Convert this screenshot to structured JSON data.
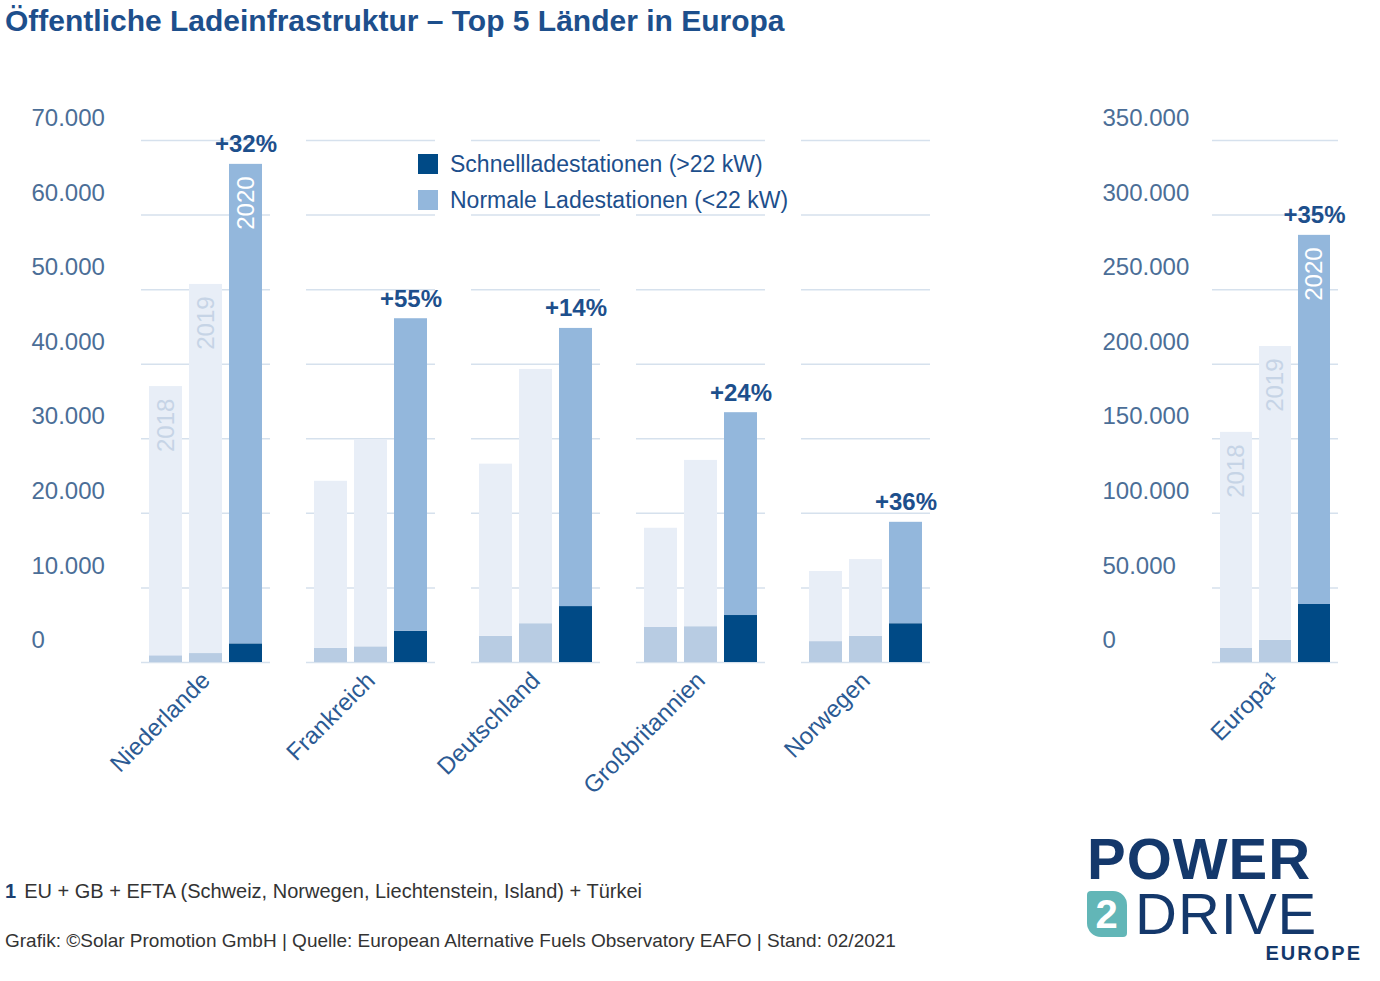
{
  "chart_data": [
    {
      "type": "bar",
      "stacked": true,
      "grid": true,
      "legend": "top",
      "title": "Öffentliche Ladeinfrastruktur – Top 5 Länder in Europa",
      "categories": [
        "Niederlande",
        "Frankreich",
        "Deutschland",
        "Großbritannien",
        "Norwegen"
      ],
      "groups": [
        "2018",
        "2019",
        "2020"
      ],
      "group_labels_printed": [
        true,
        false,
        false,
        false,
        false
      ],
      "series": [
        {
          "name": "Schnellladestationen (>22 kW)",
          "colors": [
            "#b8cce3",
            "#b8cce3",
            "#004a86"
          ],
          "values": [
            [
              900,
              1200,
              2500
            ],
            [
              1900,
              2100,
              4200
            ],
            [
              3500,
              5200,
              7500
            ],
            [
              4700,
              4800,
              6300
            ],
            [
              2800,
              3500,
              5200
            ]
          ]
        },
        {
          "name": "Normale Ladestationen (<22 kW)",
          "colors": [
            "#e8eef7",
            "#e8eef7",
            "#93b7dc"
          ],
          "values": [
            [
              36100,
              49500,
              64300
            ],
            [
              22400,
              27800,
              41900
            ],
            [
              23100,
              34100,
              37300
            ],
            [
              13300,
              22300,
              27200
            ],
            [
              9400,
              10300,
              13600
            ]
          ]
        }
      ],
      "annotations": {
        "values": [
          32,
          55,
          14,
          24,
          36
        ],
        "value_labels": [
          "+32%",
          "+55%",
          "+14%",
          "+24%",
          "+36%"
        ]
      },
      "ylim": [
        0,
        70000
      ],
      "yticks": [
        0,
        {
          "value": 10000,
          "label": "10.000"
        },
        {
          "value": 20000,
          "label": "20.000"
        },
        {
          "value": 30000,
          "label": "30.000"
        },
        {
          "value": 40000,
          "label": "40.000"
        },
        {
          "value": 50000,
          "label": "50.000"
        },
        {
          "value": 60000,
          "label": "60.000"
        },
        {
          "value": 70000,
          "label": "70.000"
        }
      ]
    },
    {
      "type": "bar",
      "stacked": true,
      "grid": true,
      "categories": [
        "Europa¹"
      ],
      "groups": [
        "2018",
        "2019",
        "2020"
      ],
      "group_labels_printed": [
        true
      ],
      "series": [
        {
          "name": "Schnellladestationen (>22 kW)",
          "colors": [
            "#b8cce3",
            "#b8cce3",
            "#004a86"
          ],
          "values": [
            [
              9400,
              14800,
              38900
            ]
          ]
        },
        {
          "name": "Normale Ladestationen (<22 kW)",
          "colors": [
            "#e8eef7",
            "#e8eef7",
            "#93b7dc"
          ],
          "values": [
            [
              144900,
              197100,
              247500
            ]
          ]
        }
      ],
      "annotations": {
        "values": [
          35
        ],
        "value_labels": [
          "+35%"
        ]
      },
      "ylim": [
        0,
        350000
      ],
      "yticks": [
        0,
        {
          "value": 50000,
          "label": "50.000"
        },
        {
          "value": 100000,
          "label": "100.000"
        },
        {
          "value": 150000,
          "label": "150.000"
        },
        {
          "value": 200000,
          "label": "200.000"
        },
        {
          "value": 250000,
          "label": "250.000"
        },
        {
          "value": 300000,
          "label": "300.000"
        },
        {
          "value": 350000,
          "label": "350.000"
        }
      ]
    }
  ],
  "footnote": {
    "marker": "1",
    "text": "EU + GB + EFTA (Schweiz, Norwegen, Liechtenstein, Island) + Türkei"
  },
  "source": "Grafik: ©Solar Promotion GmbH | Quelle: European Alternative Fuels Observatory EAFO | Stand: 02/2021",
  "logo": {
    "line1": "POWER",
    "digit": "2",
    "line2": "DRIVE",
    "line3": "EUROPE"
  }
}
